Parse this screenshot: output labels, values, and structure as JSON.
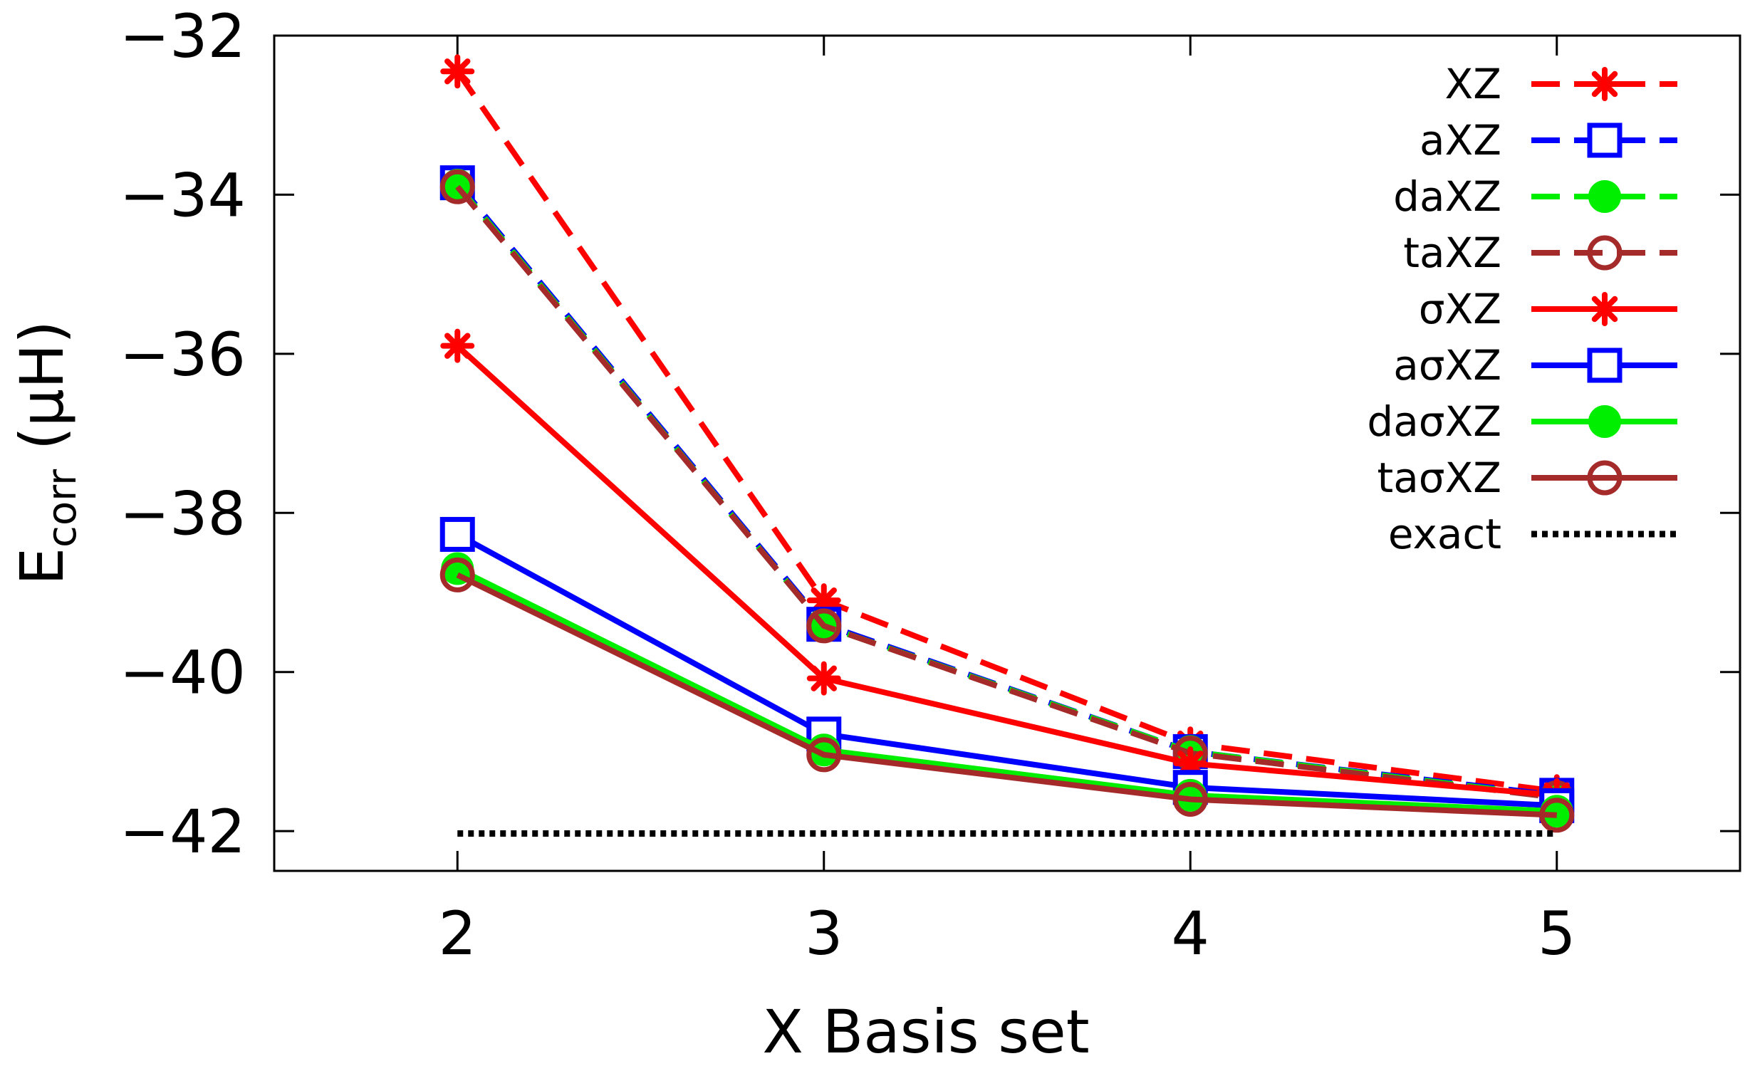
{
  "chart_data": {
    "type": "line",
    "xlabel": "X Basis set",
    "ylabel": {
      "main": "E",
      "sub": "corr",
      "rest": " (µH)"
    },
    "x": [
      2,
      3,
      4,
      5
    ],
    "xlim": [
      1.5,
      5.5
    ],
    "ylim": [
      -42.5,
      -32
    ],
    "xticks": [
      2,
      3,
      4,
      5
    ],
    "xtick_labels": [
      "2",
      "3",
      "4",
      "5"
    ],
    "yticks": [
      -42,
      -40,
      -38,
      -36,
      -34,
      -32
    ],
    "ytick_labels": [
      "−42",
      "−40",
      "−38",
      "−36",
      "−34",
      "−32"
    ],
    "legend_position": "top-right",
    "grid": false,
    "series": [
      {
        "name": "XZ",
        "color": "#ff0000",
        "dash": "dashed",
        "marker": "star",
        "values": [
          -32.45,
          -39.1,
          -40.9,
          -41.5
        ]
      },
      {
        "name": "aXZ",
        "color": "#0000ff",
        "dash": "dashed",
        "marker": "square",
        "values": [
          -33.85,
          -39.4,
          -41.0,
          -41.55
        ]
      },
      {
        "name": "daXZ",
        "color": "#00ee00",
        "dash": "dashed",
        "marker": "filled-circle",
        "values": [
          -33.88,
          -39.42,
          -41.0,
          -41.57
        ]
      },
      {
        "name": "taXZ",
        "color": "#a52a2a",
        "dash": "dashed",
        "marker": "circle",
        "values": [
          -33.9,
          -39.42,
          -41.02,
          -41.58
        ]
      },
      {
        "name": "σXZ",
        "color": "#ff0000",
        "dash": "solid",
        "marker": "star",
        "values": [
          -35.9,
          -40.08,
          -41.15,
          -41.55
        ]
      },
      {
        "name": "aσXZ",
        "color": "#0000ff",
        "dash": "solid",
        "marker": "square",
        "values": [
          -38.27,
          -40.78,
          -41.45,
          -41.68
        ]
      },
      {
        "name": "daσXZ",
        "color": "#00ee00",
        "dash": "solid",
        "marker": "filled-circle",
        "values": [
          -38.7,
          -40.98,
          -41.55,
          -41.75
        ]
      },
      {
        "name": "taσXZ",
        "color": "#a52a2a",
        "dash": "solid",
        "marker": "circle",
        "values": [
          -38.78,
          -41.04,
          -41.6,
          -41.8
        ]
      },
      {
        "name": "exact",
        "color": "#000000",
        "dash": "dotted",
        "marker": "none",
        "values": [
          -42.03,
          -42.03,
          -42.03,
          -42.03
        ]
      }
    ]
  }
}
